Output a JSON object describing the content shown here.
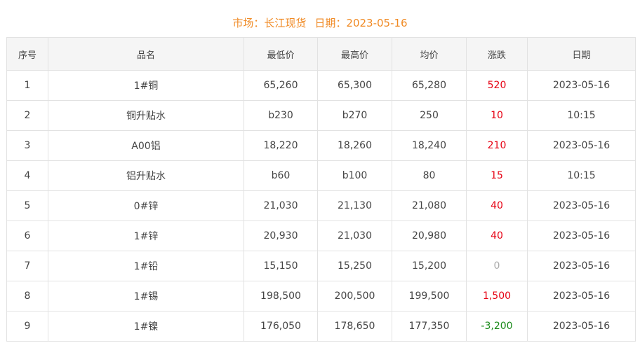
{
  "title": {
    "market_label": "市场：长江现货",
    "date_label": "日期：2023-05-16"
  },
  "colors": {
    "title": "#f08a24",
    "up": "#e60012",
    "down": "#1a8a1a",
    "flat": "#aaaaaa"
  },
  "headers": [
    "序号",
    "品名",
    "最低价",
    "最高价",
    "均价",
    "涨跌",
    "日期"
  ],
  "rows": [
    [
      "1",
      "1#铜",
      "65,260",
      "65,300",
      "65,280",
      "520",
      "2023-05-16",
      "up"
    ],
    [
      "2",
      "铜升贴水",
      "b230",
      "b270",
      "250",
      "10",
      "10:15",
      "up"
    ],
    [
      "3",
      "A00铝",
      "18,220",
      "18,260",
      "18,240",
      "210",
      "2023-05-16",
      "up"
    ],
    [
      "4",
      "铝升贴水",
      "b60",
      "b100",
      "80",
      "15",
      "10:15",
      "up"
    ],
    [
      "5",
      "0#锌",
      "21,030",
      "21,130",
      "21,080",
      "40",
      "2023-05-16",
      "up"
    ],
    [
      "6",
      "1#锌",
      "20,930",
      "21,030",
      "20,980",
      "40",
      "2023-05-16",
      "up"
    ],
    [
      "7",
      "1#铅",
      "15,150",
      "15,250",
      "15,200",
      "0",
      "2023-05-16",
      "flat"
    ],
    [
      "8",
      "1#锡",
      "198,500",
      "200,500",
      "199,500",
      "1,500",
      "2023-05-16",
      "up"
    ],
    [
      "9",
      "1#镍",
      "176,050",
      "178,650",
      "177,350",
      "-3,200",
      "2023-05-16",
      "down"
    ]
  ]
}
